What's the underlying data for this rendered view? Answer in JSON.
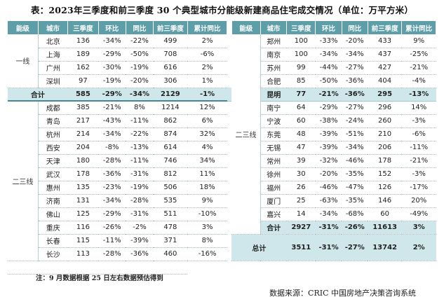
{
  "title": "表：2023年三季度和前三季度 30 个典型城市分能级新建商品住宅成交情况（单位：万平方米）",
  "headers": [
    "能级",
    "城市",
    "三季度",
    "环比",
    "同比",
    "前三季度",
    "累计同比"
  ],
  "tier1_label": "一线",
  "tier23_label": "二三线",
  "left": {
    "tier1_rows": [
      [
        "北京",
        "136",
        "-34%",
        "-22%",
        "499",
        "2%"
      ],
      [
        "上海",
        "189",
        "-29%",
        "-50%",
        "708",
        "-6%"
      ],
      [
        "广州",
        "162",
        "-30%",
        "-19%",
        "616",
        "2%"
      ],
      [
        "深圳",
        "97",
        "-19%",
        "-20%",
        "306",
        "1%"
      ]
    ],
    "tier1_total": [
      "合计",
      "585",
      "-29%",
      "-34%",
      "2129",
      "-1%"
    ],
    "tier23_rows": [
      [
        "成都",
        "385",
        "-21%",
        "8%",
        "1214",
        "12%"
      ],
      [
        "青岛",
        "217",
        "-43%",
        "-11%",
        "862",
        "6%"
      ],
      [
        "杭州",
        "214",
        "-34%",
        "-22%",
        "874",
        "32%"
      ],
      [
        "西安",
        "204",
        "-8%",
        "-13%",
        "614",
        "4%"
      ],
      [
        "天津",
        "180",
        "-28%",
        "-11%",
        "746",
        "34%"
      ],
      [
        "武汉",
        "178",
        "-36%",
        "-31%",
        "812",
        "11%"
      ],
      [
        "惠州",
        "135",
        "-23%",
        "-19%",
        "506",
        "18%"
      ],
      [
        "济南",
        "131",
        "-34%",
        "-28%",
        "535",
        "9%"
      ],
      [
        "佛山",
        "125",
        "-29%",
        "-31%",
        "511",
        "-10%"
      ],
      [
        "重庆",
        "116",
        "-26%",
        "-2%",
        "478",
        "3%"
      ],
      [
        "长春",
        "115",
        "-11%",
        "-39%",
        "371",
        "8%"
      ],
      [
        "长沙",
        "113",
        "-28%",
        "-36%",
        "460",
        "-16%"
      ]
    ]
  },
  "right": {
    "rows": [
      [
        "郑州",
        "100",
        "-33%",
        "-20%",
        "433",
        "9%"
      ],
      [
        "南京",
        "100",
        "-34%",
        "-34%",
        "437",
        "-25%"
      ],
      [
        "苏州",
        "99",
        "-44%",
        "-27%",
        "427",
        "-21%"
      ],
      [
        "合肥",
        "85",
        "-50%",
        "-36%",
        "404",
        "-4%"
      ],
      [
        "昆明",
        "77",
        "-21%",
        "-36%",
        "295",
        "-13%"
      ],
      [
        "南宁",
        "64",
        "-29%",
        "-27%",
        "296",
        "14%"
      ],
      [
        "宁波",
        "60",
        "-38%",
        "-24%",
        "260",
        "-3%"
      ],
      [
        "东莞",
        "48",
        "-39%",
        "-51%",
        "210",
        "-6%"
      ],
      [
        "无锡",
        "47",
        "-39%",
        "-34%",
        "206",
        "-11%"
      ],
      [
        "常州",
        "39",
        "-32%",
        "-46%",
        "178",
        "-21%"
      ],
      [
        "徐州",
        "30",
        "-20%",
        "-35%",
        "152",
        "-3%"
      ],
      [
        "福州",
        "26",
        "-46%",
        "-47%",
        "126",
        "-17%"
      ],
      [
        "厦门",
        "25",
        "-63%",
        "-35%",
        "146",
        "20%"
      ],
      [
        "嘉兴",
        "14",
        "-34%",
        "-68%",
        "60",
        "-49%"
      ]
    ],
    "tier23_total": [
      "合计",
      "2927",
      "-31%",
      "-26%",
      "11613",
      "3%"
    ],
    "grand_total_label": "总计",
    "grand_total": [
      "3511",
      "-31%",
      "-27%",
      "13742",
      "2%"
    ]
  },
  "note": "注：9 月数据根据 25 日左右数据预估得到",
  "source": "数据来源：CRIC 中国房地产决策咨询系统"
}
